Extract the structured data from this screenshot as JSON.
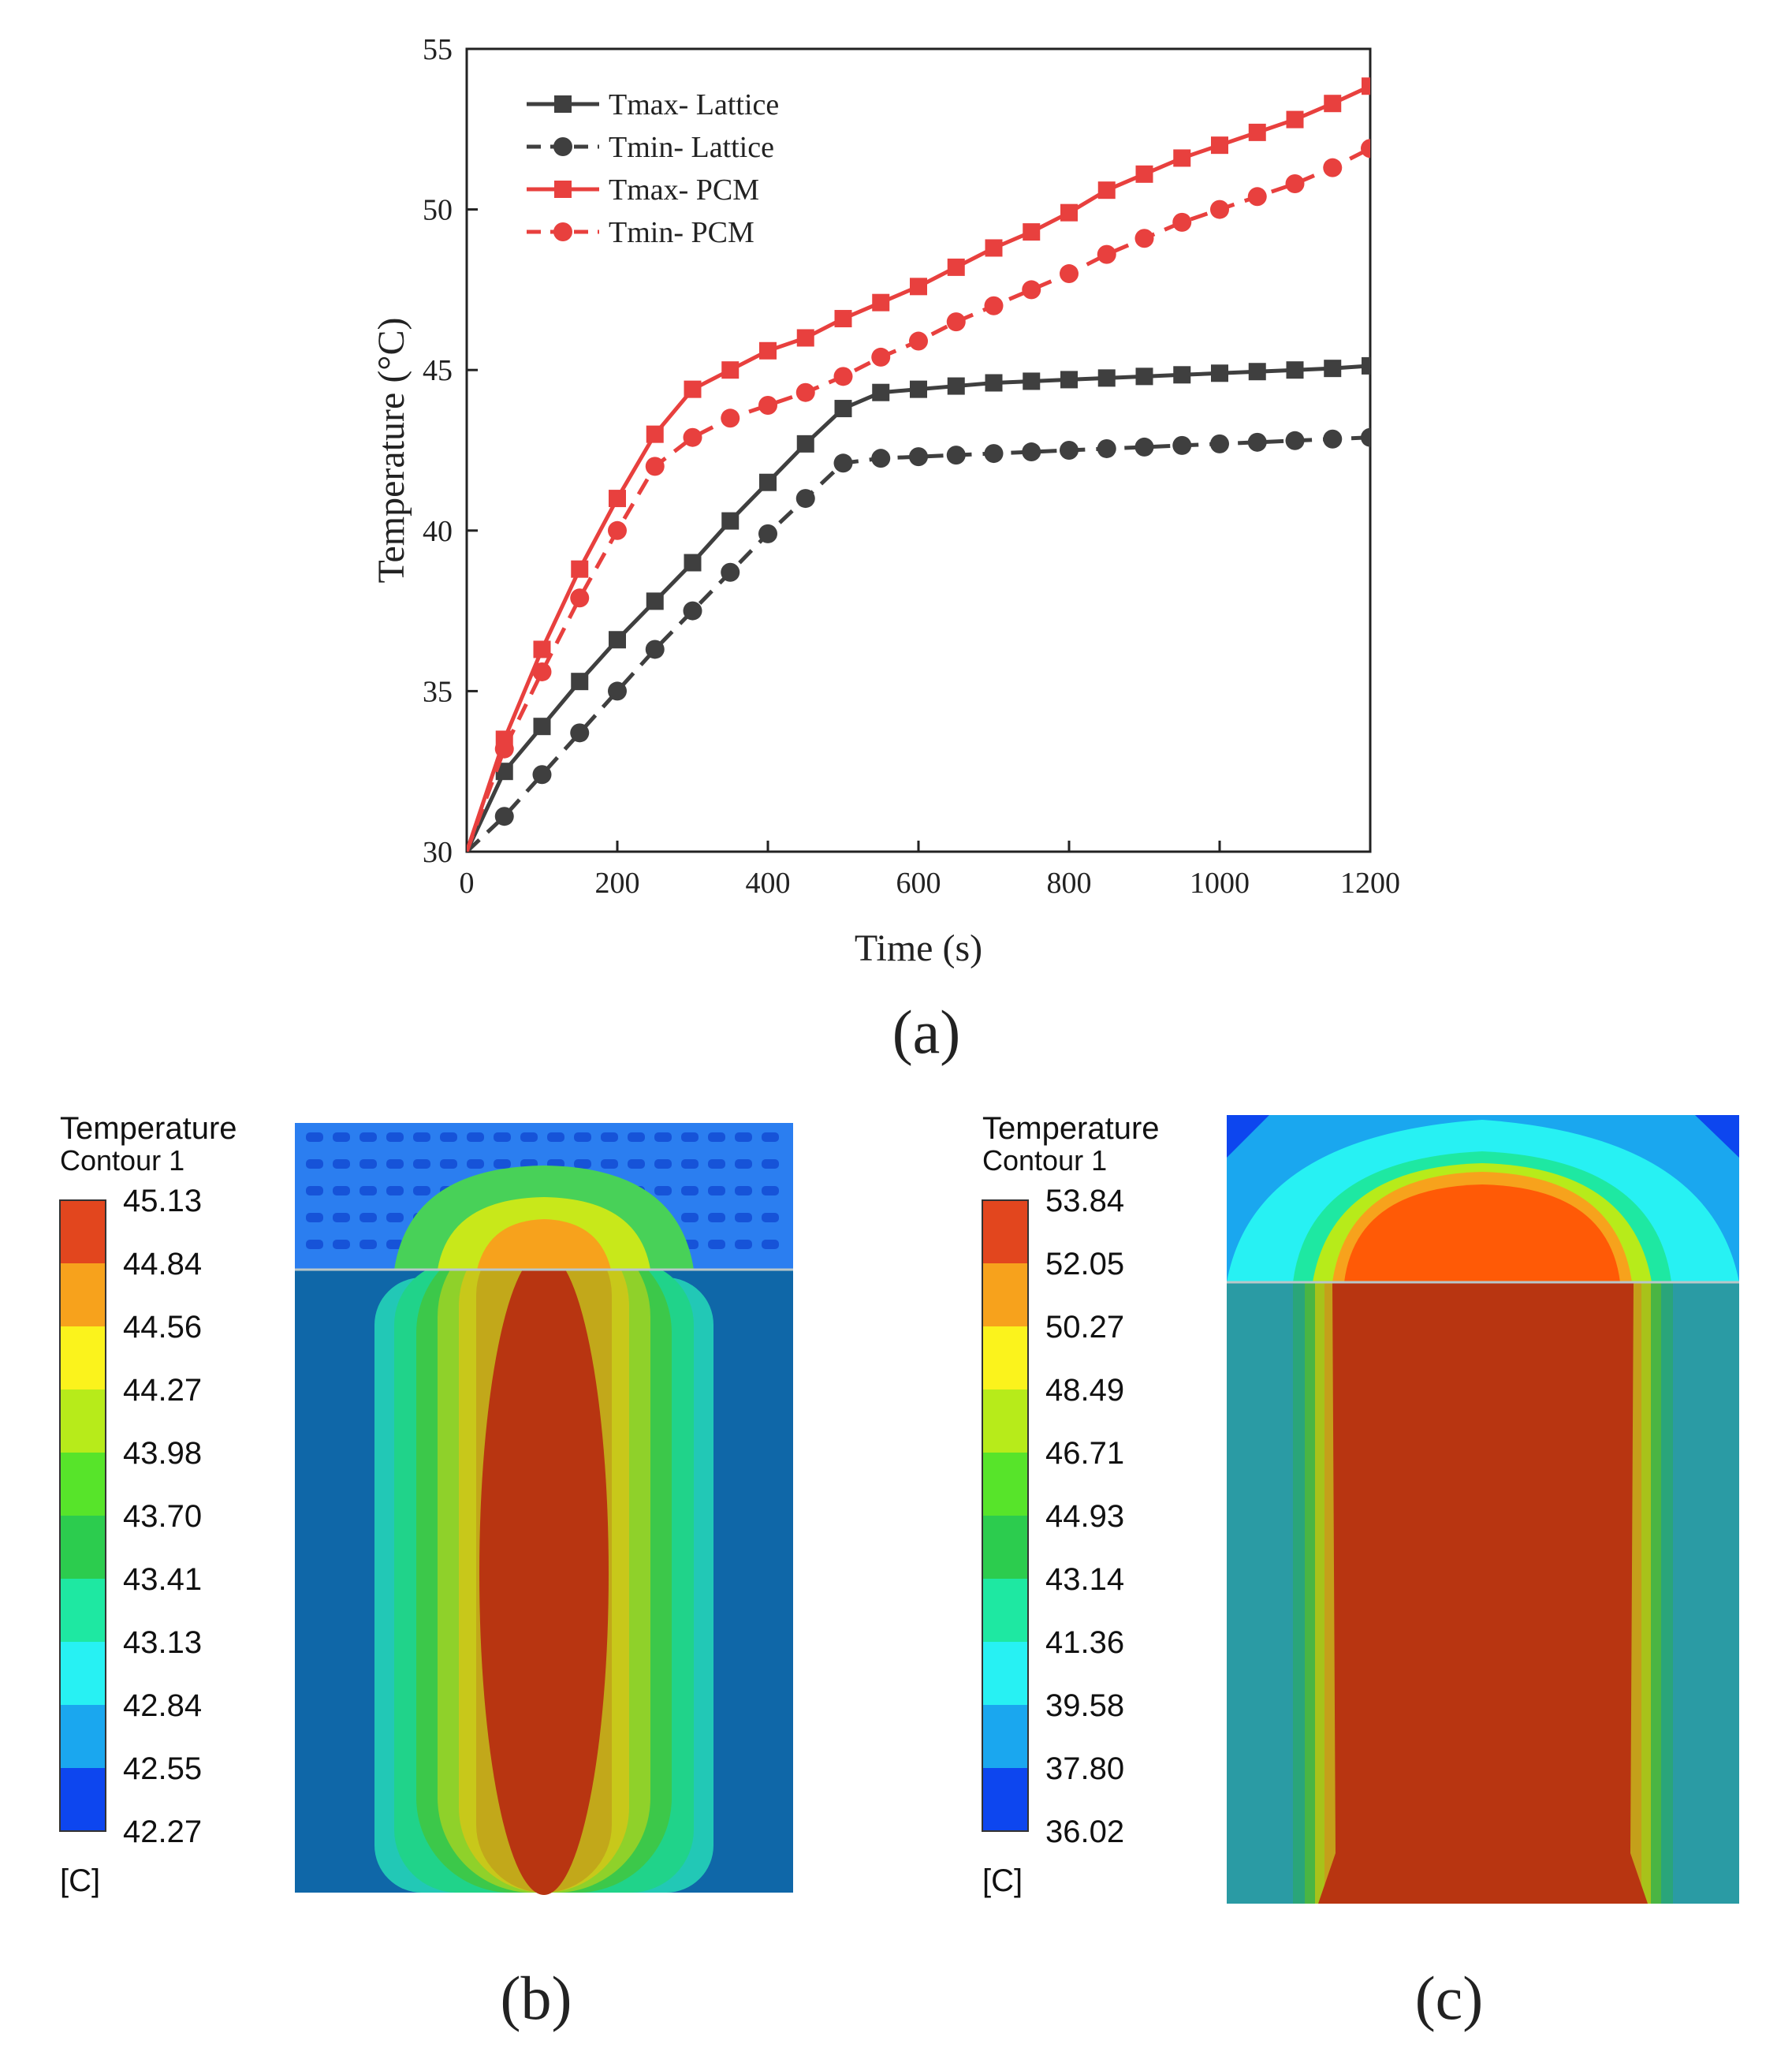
{
  "chart_data": [
    {
      "type": "line",
      "panel_label": "(a)",
      "xlabel": "Time (s)",
      "ylabel": "Temperature (°C)",
      "xlim": [
        0,
        1200
      ],
      "ylim": [
        30,
        55
      ],
      "xticks": [
        0,
        200,
        400,
        600,
        800,
        1000,
        1200
      ],
      "yticks": [
        30,
        35,
        40,
        45,
        50,
        55
      ],
      "legend_position": "top-left",
      "x": [
        0,
        50,
        100,
        150,
        200,
        250,
        300,
        350,
        400,
        450,
        500,
        550,
        600,
        650,
        700,
        750,
        800,
        850,
        900,
        950,
        1000,
        1050,
        1100,
        1150,
        1200
      ],
      "series": [
        {
          "name": "Tmax- Lattice",
          "color": "#3f3f3f",
          "dash": "solid",
          "marker": "square",
          "values": [
            30.0,
            32.5,
            33.9,
            35.3,
            36.6,
            37.8,
            39.0,
            40.3,
            41.5,
            42.7,
            43.8,
            44.3,
            44.4,
            44.5,
            44.6,
            44.65,
            44.7,
            44.75,
            44.8,
            44.85,
            44.9,
            44.95,
            45.0,
            45.05,
            45.13
          ]
        },
        {
          "name": "Tmin- Lattice",
          "color": "#3f3f3f",
          "dash": "dashed",
          "marker": "circle",
          "values": [
            30.0,
            31.1,
            32.4,
            33.7,
            35.0,
            36.3,
            37.5,
            38.7,
            39.9,
            41.0,
            42.1,
            42.25,
            42.3,
            42.35,
            42.4,
            42.45,
            42.5,
            42.55,
            42.6,
            42.65,
            42.7,
            42.75,
            42.8,
            42.85,
            42.9
          ]
        },
        {
          "name": "Tmax- PCM",
          "color": "#e8403e",
          "dash": "solid",
          "marker": "square",
          "values": [
            30.0,
            33.5,
            36.3,
            38.8,
            41.0,
            43.0,
            44.4,
            45.0,
            45.6,
            46.0,
            46.6,
            47.1,
            47.6,
            48.2,
            48.8,
            49.3,
            49.9,
            50.6,
            51.1,
            51.6,
            52.0,
            52.4,
            52.8,
            53.3,
            53.84
          ]
        },
        {
          "name": "Tmin- PCM",
          "color": "#e8403e",
          "dash": "dashed",
          "marker": "circle",
          "values": [
            30.0,
            33.2,
            35.6,
            37.9,
            40.0,
            42.0,
            42.9,
            43.5,
            43.9,
            44.3,
            44.8,
            45.4,
            45.9,
            46.5,
            47.0,
            47.5,
            48.0,
            48.6,
            49.1,
            49.6,
            50.0,
            50.4,
            50.8,
            51.3,
            51.9
          ]
        }
      ]
    },
    {
      "type": "heatmap",
      "panel_label": "(b)",
      "legend_title_1": "Temperature",
      "legend_title_2": "Contour 1",
      "unit": "[C]",
      "levels": [
        "45.13",
        "44.84",
        "44.56",
        "44.27",
        "43.98",
        "43.70",
        "43.41",
        "43.13",
        "42.84",
        "42.55",
        "42.27"
      ],
      "colors": [
        "#e2461e",
        "#f7a21c",
        "#fbf31c",
        "#b7eb1a",
        "#57e42a",
        "#2ccc4e",
        "#1ee8a2",
        "#27f1f3",
        "#1aa7ef",
        "#0d46ef"
      ]
    },
    {
      "type": "heatmap",
      "panel_label": "(c)",
      "legend_title_1": "Temperature",
      "legend_title_2": "Contour 1",
      "unit": "[C]",
      "levels": [
        "53.84",
        "52.05",
        "50.27",
        "48.49",
        "46.71",
        "44.93",
        "43.14",
        "41.36",
        "39.58",
        "37.80",
        "36.02"
      ],
      "colors": [
        "#e2461e",
        "#f7a21c",
        "#fbf31c",
        "#b7eb1a",
        "#57e42a",
        "#2ccc4e",
        "#1ee8a2",
        "#27f1f3",
        "#1aa7ef",
        "#0d46ef"
      ]
    }
  ]
}
